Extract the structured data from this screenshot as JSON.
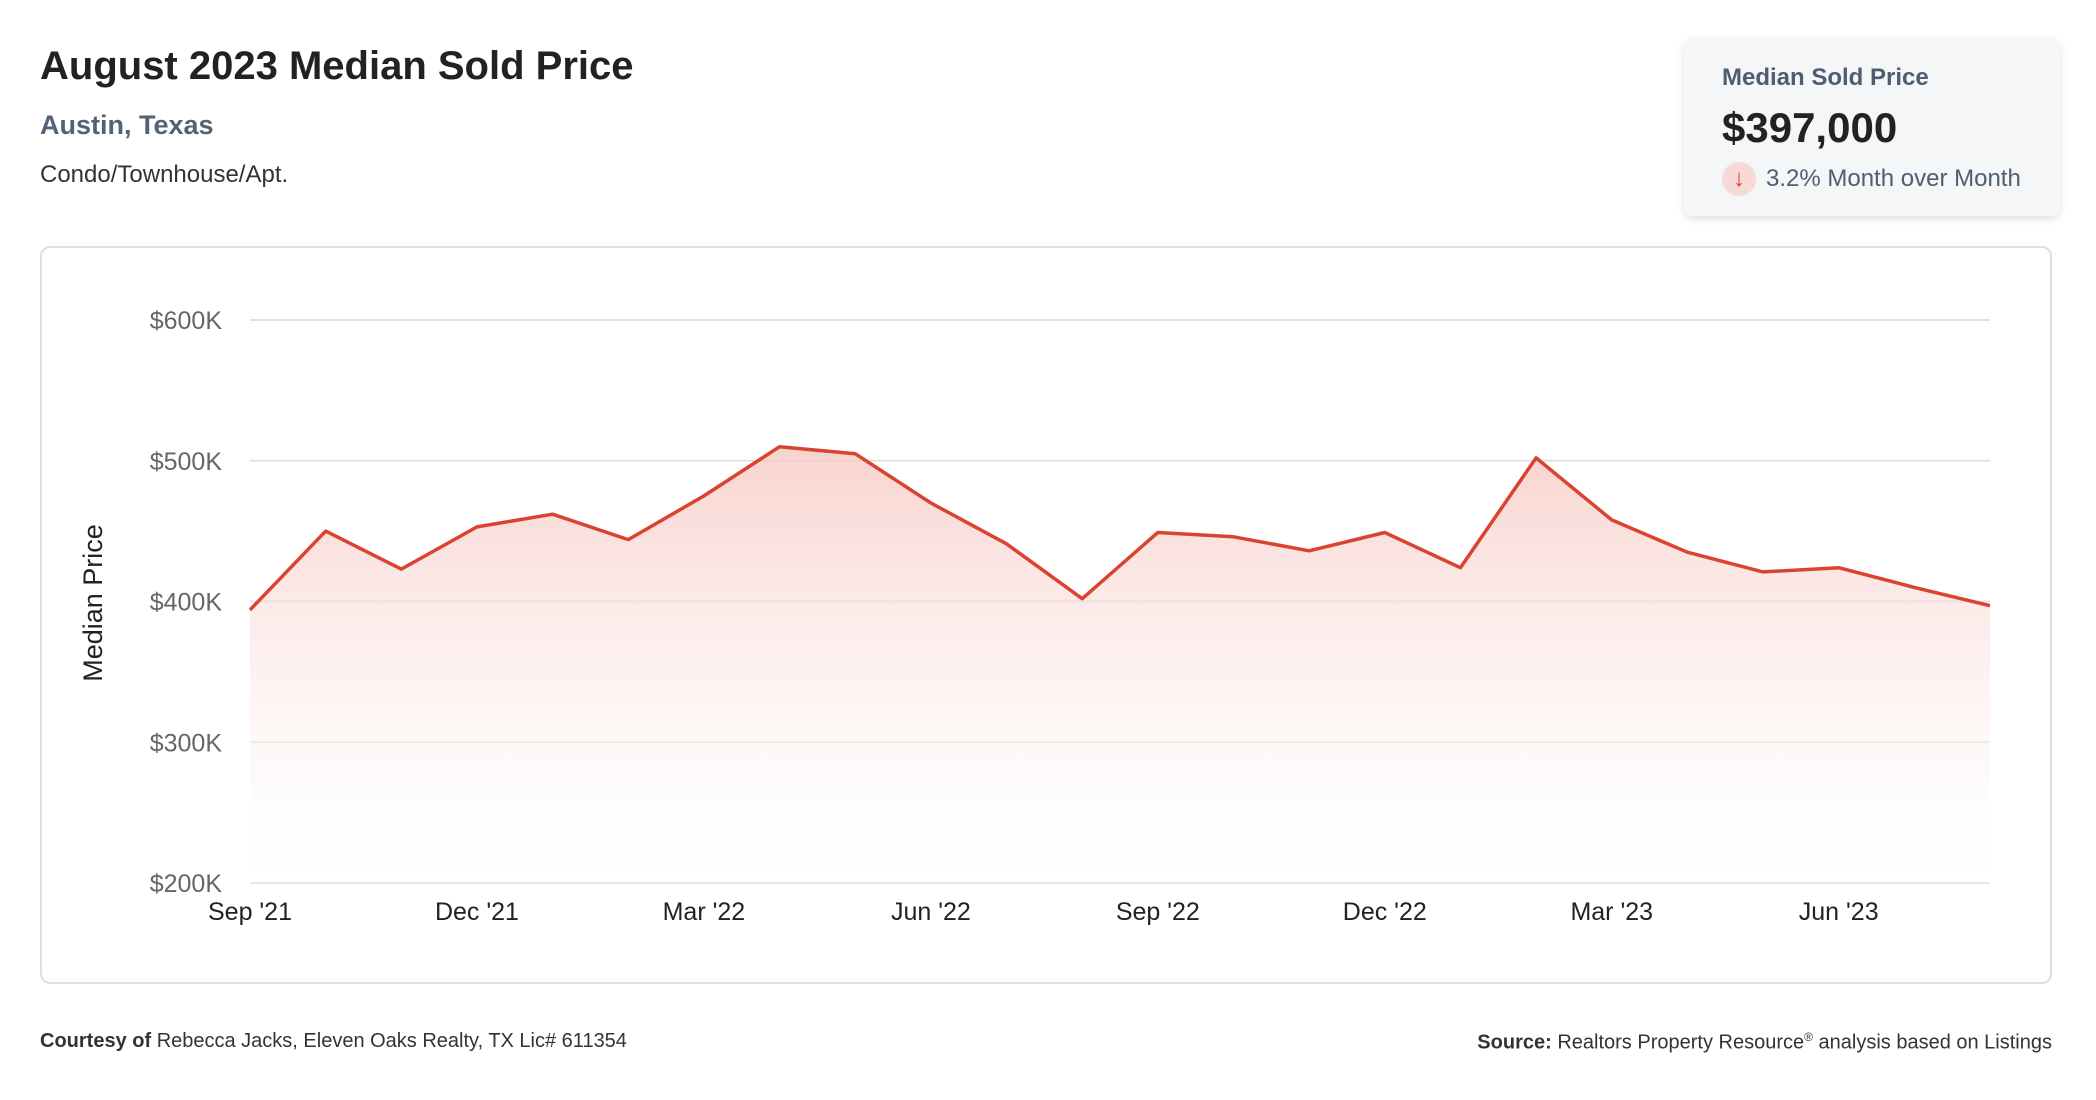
{
  "header": {
    "title": "August 2023 Median Sold Price",
    "location": "Austin, Texas",
    "category": "Condo/Townhouse/Apt."
  },
  "stat_card": {
    "label": "Median Sold Price",
    "value": "$397,000",
    "change": "3.2% Month over Month",
    "direction_icon": "arrow-down-icon",
    "direction_color": "#d9432f"
  },
  "footer": {
    "courtesy_label": "Courtesy of",
    "courtesy_text": "Rebecca Jacks, Eleven Oaks Realty, TX Lic# 611354",
    "source_label": "Source:",
    "source_text_1": "Realtors Property Resource",
    "source_mark": "®",
    "source_text_2": " analysis based on Listings"
  },
  "chart_data": {
    "type": "area",
    "title": "",
    "xlabel": "",
    "ylabel": "Median Price",
    "ylim": [
      200000,
      600000
    ],
    "yticks": [
      {
        "value": 600000,
        "label": "$600K"
      },
      {
        "value": 500000,
        "label": "$500K"
      },
      {
        "value": 400000,
        "label": "$400K"
      },
      {
        "value": 300000,
        "label": "$300K"
      },
      {
        "value": 200000,
        "label": "$200K"
      }
    ],
    "x": [
      "Sep '21",
      "Oct '21",
      "Nov '21",
      "Dec '21",
      "Jan '22",
      "Feb '22",
      "Mar '22",
      "Apr '22",
      "May '22",
      "Jun '22",
      "Jul '22",
      "Aug '22",
      "Sep '22",
      "Oct '22",
      "Nov '22",
      "Dec '22",
      "Jan '23",
      "Feb '23",
      "Mar '23",
      "Apr '23",
      "May '23",
      "Jun '23",
      "Jul '23",
      "Aug '23"
    ],
    "xticks": [
      "Sep '21",
      "Dec '21",
      "Mar '22",
      "Jun '22",
      "Sep '22",
      "Dec '22",
      "Mar '23",
      "Jun '23"
    ],
    "series": [
      {
        "values": [
          394000,
          450000,
          423000,
          453000,
          462000,
          444000,
          475000,
          510000,
          505000,
          470000,
          441000,
          402000,
          449000,
          446000,
          436000,
          449000,
          424000,
          502000,
          458000,
          435000,
          421000,
          424000,
          410000,
          397000
        ]
      }
    ],
    "colors": {
      "line": "#d9432f",
      "fill_top": "#f7cbc5",
      "grid": "#e3e3e3"
    },
    "grid": true,
    "legend": "none"
  }
}
